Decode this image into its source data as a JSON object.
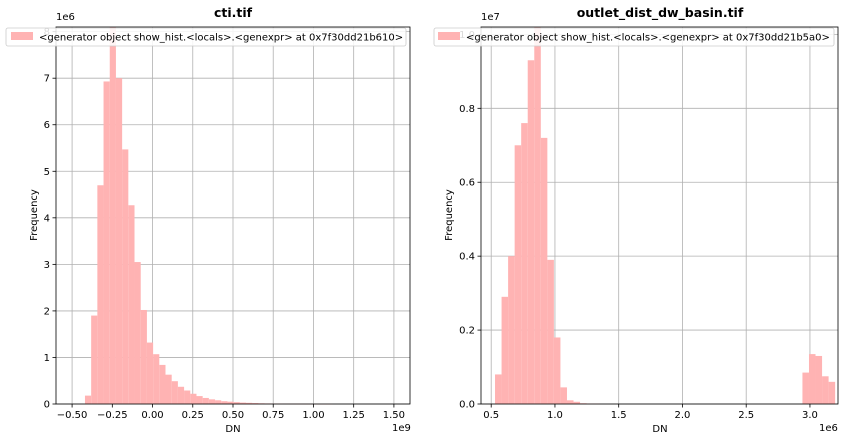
{
  "chart_data": [
    {
      "type": "bar",
      "title": "cti.tif",
      "xlabel": "DN",
      "ylabel": "Frequency",
      "x_offset_label": "1e9",
      "y_offset_label": "1e6",
      "xlim": [
        -0.6,
        1.6
      ],
      "ylim": [
        0,
        8.1
      ],
      "x_ticks": [
        -0.5,
        -0.25,
        0.0,
        0.25,
        0.5,
        0.75,
        1.0,
        1.25,
        1.5
      ],
      "x_tick_labels": [
        "−0.50",
        "−0.25",
        "0.00",
        "0.25",
        "0.50",
        "0.75",
        "1.00",
        "1.25",
        "1.50"
      ],
      "y_ticks": [
        0,
        1,
        2,
        3,
        4,
        5,
        6,
        7,
        8
      ],
      "y_tick_labels": [
        "0",
        "1",
        "2",
        "3",
        "4",
        "5",
        "6",
        "7",
        "8"
      ],
      "grid": true,
      "legend": {
        "position": "top-left",
        "entries": [
          "<generator object show_hist.<locals>.<genexpr> at 0x7f30dd21b610>"
        ]
      },
      "color": "#ffb3b3",
      "bin_start": -0.42,
      "bin_width": 0.0385,
      "values": [
        0.18,
        1.9,
        4.7,
        6.93,
        8.1,
        7.0,
        5.47,
        4.27,
        3.05,
        2.02,
        1.32,
        1.07,
        0.84,
        0.63,
        0.49,
        0.37,
        0.29,
        0.22,
        0.17,
        0.13,
        0.1,
        0.08,
        0.06,
        0.05,
        0.04,
        0.03,
        0.025,
        0.02,
        0.015,
        0.012,
        0.01,
        0.008,
        0.006,
        0.005,
        0.004,
        0.003,
        0.002,
        0.002,
        0.001,
        0.001
      ]
    },
    {
      "type": "bar",
      "title": "outlet_dist_dw_basin.tif",
      "xlabel": "DN",
      "ylabel": "Frequency",
      "x_offset_label": "1e6",
      "y_offset_label": "1e7",
      "xlim": [
        0.42,
        3.22
      ],
      "ylim": [
        0,
        1.02
      ],
      "x_ticks": [
        0.5,
        1.0,
        1.5,
        2.0,
        2.5,
        3.0
      ],
      "x_tick_labels": [
        "0.5",
        "1.0",
        "1.5",
        "2.0",
        "2.5",
        "3.0"
      ],
      "y_ticks": [
        0,
        0.2,
        0.4,
        0.6,
        0.8,
        1.0
      ],
      "y_tick_labels": [
        "0.0",
        "0.2",
        "0.4",
        "0.6",
        "0.8",
        "1.0"
      ],
      "grid": true,
      "legend": {
        "position": "top-left",
        "entries": [
          "<generator object show_hist.<locals>.<genexpr> at 0x7f30dd21b5a0>"
        ]
      },
      "color": "#ffb3b3",
      "bin_start": 0.53,
      "bin_width": 0.0513,
      "values": [
        0.08,
        0.29,
        0.4,
        0.7,
        0.76,
        0.93,
        1.02,
        0.72,
        0.39,
        0.18,
        0.045,
        0.01,
        0.006,
        0.002,
        0.001,
        0.001,
        0,
        0,
        0,
        0,
        0,
        0,
        0,
        0,
        0,
        0,
        0,
        0,
        0,
        0,
        0,
        0,
        0,
        0,
        0,
        0,
        0,
        0,
        0,
        0,
        0,
        0,
        0,
        0,
        0,
        0,
        0,
        0.085,
        0.135,
        0.13,
        0.075,
        0.06
      ]
    }
  ]
}
